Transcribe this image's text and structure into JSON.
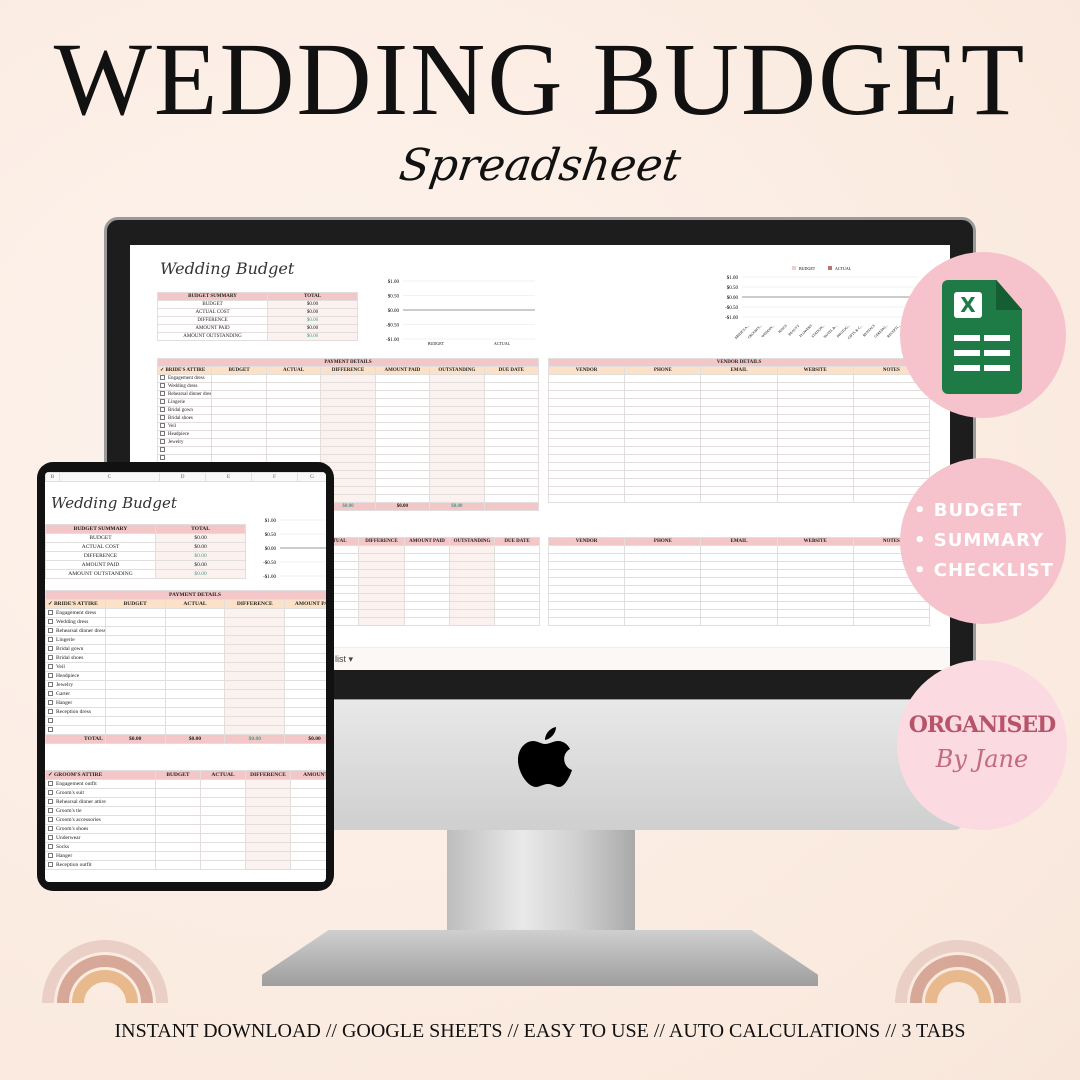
{
  "header": {
    "title": "WEDDING BUDGET",
    "subtitle": "Spreadsheet"
  },
  "sheet": {
    "title": "Wedding Budget",
    "summary": {
      "header": [
        "BUDGET SUMMARY",
        "TOTAL"
      ],
      "rows": [
        {
          "label": "BUDGET",
          "value": "$0.00",
          "green": false
        },
        {
          "label": "ACTUAL COST",
          "value": "$0.00",
          "green": false
        },
        {
          "label": "DIFFERENCE",
          "value": "$0.00",
          "green": true
        },
        {
          "label": "AMOUNT PAID",
          "value": "$0.00",
          "green": false
        },
        {
          "label": "AMOUNT OUTSTANDING",
          "value": "$0.00",
          "green": true
        }
      ]
    },
    "chart1": {
      "type": "bar",
      "yticks": [
        "$1.00",
        "$0.50",
        "$0.00",
        "-$0.50",
        "-$1.00"
      ],
      "categories": [
        "BUDGET",
        "ACTUAL"
      ],
      "values": [
        0,
        0
      ]
    },
    "chart2": {
      "type": "bar",
      "legend": [
        "BUDGET",
        "ACTUAL"
      ],
      "legend_colors": [
        "#efcfc9",
        "#b9776b"
      ],
      "yticks": [
        "$1.00",
        "$0.50",
        "$0.00",
        "-$0.50",
        "-$1.00"
      ],
      "categories": [
        "BRIDE'S A...",
        "GROOM'S...",
        "WEDDIN...",
        "RINGS",
        "BEAUTY",
        "FLOWERS",
        "STATION...",
        "HOTEL &...",
        "PHOTOG...",
        "GIFTS & C...",
        "RENTALS",
        "CEREMO...",
        "RECEPTI...",
        "RE..."
      ]
    },
    "payment": {
      "title": "PAYMENT DETAILS",
      "columns": [
        "BRIDE'S ATTIRE",
        "BUDGET",
        "ACTUAL",
        "DIFFERENCE",
        "AMOUNT PAID",
        "OUTSTANDING",
        "DUE DATE"
      ],
      "check_mark": "✓",
      "bride_items": [
        "Engagement dress",
        "Wedding dress",
        "Rehearsal dinner dress",
        "Lingerie",
        "Bridal gown",
        "Bridal shoes",
        "Veil",
        "Headpiece",
        "Jewelry",
        "Garter",
        "Hanger",
        "Reception dress"
      ],
      "total_label": "TOTAL",
      "totals": [
        "$0.00",
        "$0.00",
        "$0.00",
        "$0.00",
        "$0.00"
      ]
    },
    "vendor": {
      "title": "VENDOR DETAILS",
      "columns": [
        "VENDOR",
        "PHONE",
        "EMAIL",
        "WEBSITE",
        "NOTES"
      ]
    },
    "tab_label": "list ▾"
  },
  "tablet": {
    "column_letters": [
      "B",
      "C",
      "D",
      "E",
      "F",
      "G"
    ],
    "groom_columns": [
      "GROOM'S ATTIRE",
      "BUDGET",
      "ACTUAL",
      "DIFFERENCE",
      "AMOUNT P"
    ],
    "groom_items": [
      "Engagement outfit",
      "Groom's suit",
      "Rehearsal dinner attire",
      "Groom's tie",
      "Groom's accessories",
      "Groom's shoes",
      "Underwear",
      "Socks",
      "Hanger",
      "Reception outfit"
    ]
  },
  "badges": {
    "app_icon": "google-sheets-icon",
    "app_letter": "X",
    "features": [
      "BUDGET",
      "SUMMARY",
      "CHECKLIST"
    ],
    "brand_line1": "ORGANISED",
    "brand_line2": "By Jane"
  },
  "footer": {
    "items": [
      "INSTANT DOWNLOAD",
      "GOOGLE SHEETS",
      "EASY TO USE",
      "AUTO CALCULATIONS",
      "3 TABS"
    ],
    "separator": "//"
  },
  "colors": {
    "header_pink": "#f3c6c7",
    "header_peach": "#fbe1c8",
    "badge_pink": "#f6c3cc",
    "sheets_green": "#1e7b45",
    "brand": "#b8546a"
  }
}
